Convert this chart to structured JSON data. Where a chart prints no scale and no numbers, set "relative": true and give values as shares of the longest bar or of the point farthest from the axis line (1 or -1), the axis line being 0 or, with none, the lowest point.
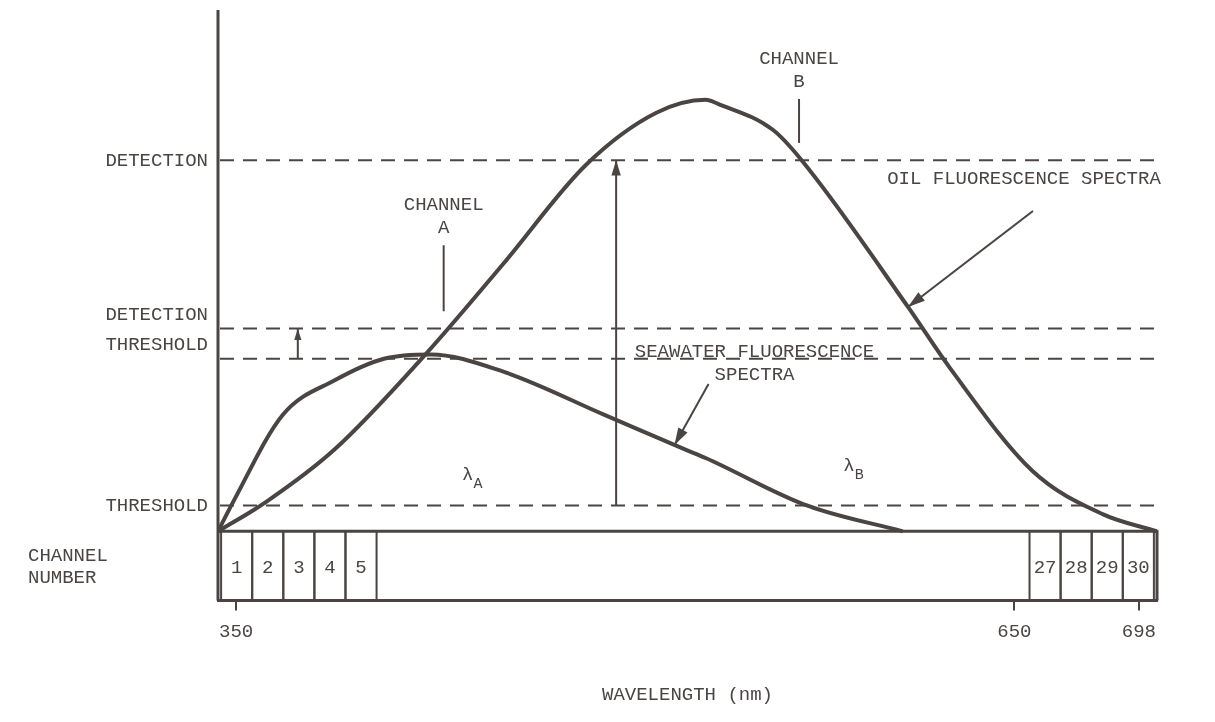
{
  "chart_data": {
    "type": "line",
    "relative": true,
    "xlabel": "WAVELENGTH (nm)",
    "xlim": [
      343,
      705
    ],
    "xticks": [
      350,
      650,
      698
    ],
    "x2label": "CHANNEL NUMBER",
    "x2lim": [
      0.4,
      30.6
    ],
    "x2ticks": [
      1,
      2,
      3,
      4,
      5,
      27,
      28,
      29,
      30
    ],
    "grid": false,
    "legend": false,
    "marker": "none",
    "line_style": "solid",
    "series": [
      {
        "color": "#4a4543",
        "x": [
          343,
          362,
          388,
          423,
          453,
          485,
          512,
          531,
          536,
          557,
          568,
          609,
          625,
          657,
          684,
          705
        ],
        "values": [
          0,
          0.07,
          0.19,
          0.41,
          0.62,
          0.85,
          0.97,
          1.0,
          0.99,
          0.93,
          0.86,
          0.52,
          0.38,
          0.14,
          0.04,
          0
        ]
      },
      {
        "color": "#4a4543",
        "x": [
          343,
          349,
          368,
          388,
          407,
          425,
          453,
          492,
          523,
          531,
          570,
          607
        ],
        "values": [
          0,
          0.07,
          0.27,
          0.35,
          0.4,
          0.41,
          0.37,
          0.27,
          0.19,
          0.17,
          0.06,
          0
        ]
      }
    ],
    "ref_lines": [
      {
        "axis": "y",
        "value": 0.86,
        "label": "DETECTION",
        "color": "#4a4543",
        "line_style": "dashed"
      },
      {
        "axis": "y",
        "value": 0.47,
        "label": "DETECTION THRESHOLD",
        "color": "#4a4543",
        "line_style": "dashed"
      },
      {
        "axis": "y",
        "value": 0.4,
        "label": null,
        "color": "#4a4543",
        "line_style": "dashed"
      },
      {
        "axis": "y",
        "value": 0.06,
        "label": "THRESHOLD",
        "color": "#4a4543",
        "line_style": "dashed"
      }
    ],
    "annotations": [
      "CHANNEL A",
      "CHANNEL B",
      {
        "text": "OIL FLUORESCENCE SPECTRA",
        "x": 609,
        "y": 0.52
      },
      {
        "text": "SEAWATER FLUORESCENCE SPECTRA",
        "x": 519,
        "y": 0.2
      },
      "λ$_{A}$",
      "λ$_{B}$"
    ]
  }
}
